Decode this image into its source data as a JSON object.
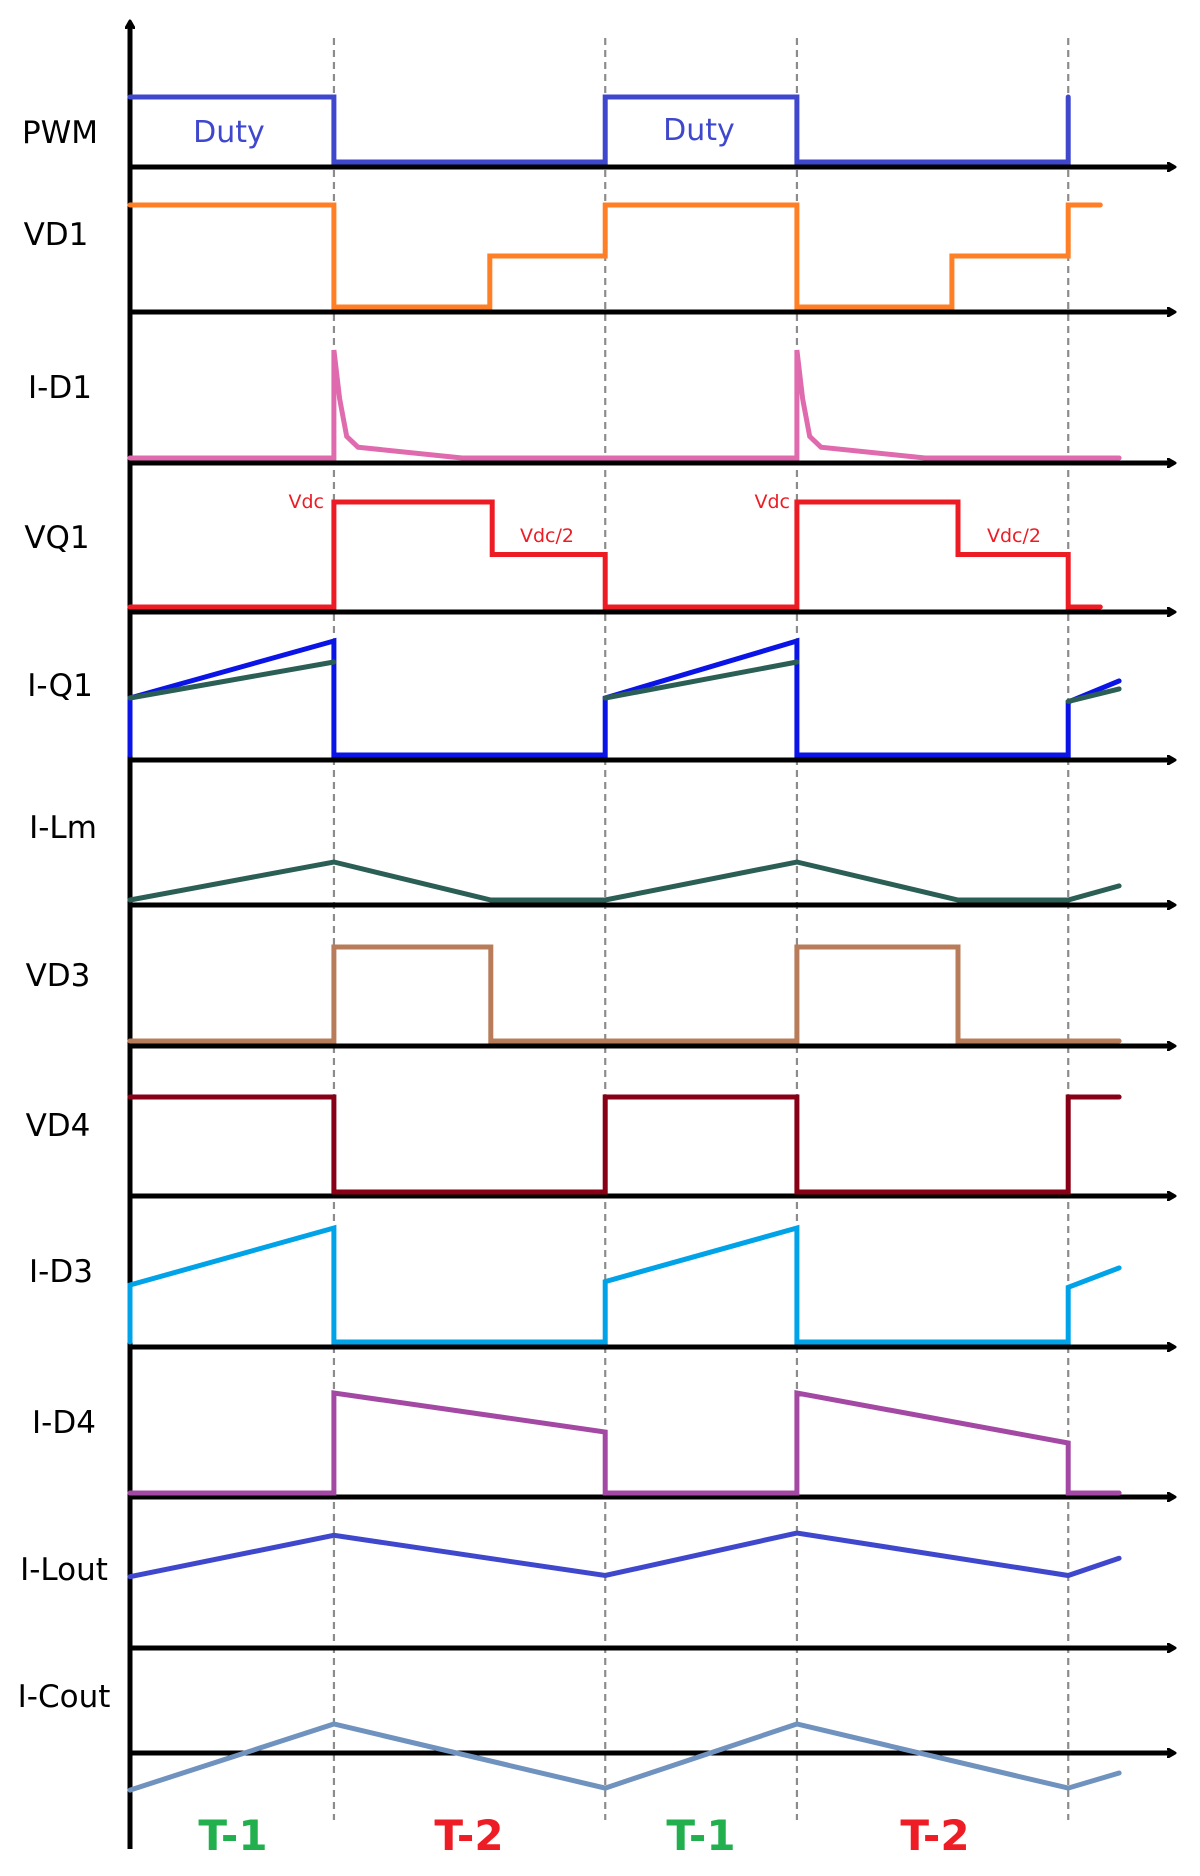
{
  "chart_data": {
    "type": "line",
    "title": "",
    "description": "Timing diagram of converter switching waveforms over two switching periods",
    "xlabel": "",
    "ylabel": "",
    "time_unit": "switching period T",
    "grid": "vertical dashed lines at phase boundaries",
    "phase_boundaries": [
      0,
      0.433,
      1.009,
      1.416,
      1.992
    ],
    "phases": [
      {
        "label": "T-1",
        "color": "#22b04f",
        "start": 0,
        "end": 0.433
      },
      {
        "label": "T-2",
        "color": "#ee1c24",
        "start": 0.433,
        "end": 1.009
      },
      {
        "label": "T-1",
        "color": "#22b04f",
        "start": 1.009,
        "end": 1.416
      },
      {
        "label": "T-2",
        "color": "#ee1c24",
        "start": 1.416,
        "end": 1.992
      }
    ],
    "series": [
      {
        "name": "PWM",
        "color": "#3f48cc",
        "points": [
          [
            0,
            1
          ],
          [
            0.433,
            1
          ],
          [
            0.433,
            0
          ],
          [
            1.009,
            0
          ],
          [
            1.009,
            1
          ],
          [
            1.416,
            1
          ],
          [
            1.416,
            0
          ],
          [
            1.992,
            0
          ],
          [
            1.992,
            1
          ]
        ],
        "annotations": [
          {
            "text": "Duty",
            "t": 0.2,
            "level": 0.5
          },
          {
            "text": "Duty",
            "t": 1.21,
            "level": 0.5
          }
        ]
      },
      {
        "name": "VD1",
        "color": "#ff7f27",
        "points": [
          [
            0,
            1
          ],
          [
            0.433,
            1
          ],
          [
            0.433,
            0
          ],
          [
            0.764,
            0
          ],
          [
            0.764,
            0.5
          ],
          [
            1.009,
            0.5
          ],
          [
            1.009,
            1
          ],
          [
            1.416,
            1
          ],
          [
            1.416,
            0
          ],
          [
            1.745,
            0
          ],
          [
            1.745,
            0.5
          ],
          [
            1.992,
            0.5
          ],
          [
            1.992,
            1
          ],
          [
            2.06,
            1
          ]
        ]
      },
      {
        "name": "I-D1",
        "color": "#e06aae",
        "points": [
          [
            0,
            0
          ],
          [
            0.433,
            0
          ],
          [
            0.433,
            1
          ],
          [
            0.445,
            0.55
          ],
          [
            0.46,
            0.2
          ],
          [
            0.484,
            0.1
          ],
          [
            0.705,
            0
          ],
          [
            1.416,
            0
          ],
          [
            1.416,
            1
          ],
          [
            1.428,
            0.55
          ],
          [
            1.443,
            0.2
          ],
          [
            1.467,
            0.1
          ],
          [
            1.688,
            0
          ],
          [
            2.1,
            0
          ]
        ]
      },
      {
        "name": "VQ1",
        "color": "#ed1c24",
        "points": [
          [
            0,
            0
          ],
          [
            0.433,
            0
          ],
          [
            0.433,
            1
          ],
          [
            0.769,
            1
          ],
          [
            0.769,
            0.5
          ],
          [
            1.009,
            0.5
          ],
          [
            1.009,
            0
          ],
          [
            1.416,
            0
          ],
          [
            1.416,
            1
          ],
          [
            1.758,
            1
          ],
          [
            1.758,
            0.5
          ],
          [
            1.992,
            0.5
          ],
          [
            1.992,
            0
          ],
          [
            2.06,
            0
          ]
        ],
        "annotations": [
          {
            "text": "Vdc",
            "t": 0.433,
            "level": 1
          },
          {
            "text": "Vdc/2",
            "t": 0.885,
            "level": 0.5
          },
          {
            "text": "Vdc",
            "t": 1.416,
            "level": 1
          },
          {
            "text": "Vdc/2",
            "t": 1.875,
            "level": 0.5
          }
        ]
      },
      {
        "name": "I-Q1",
        "color": "#0a14e6",
        "points": [
          [
            0,
            0
          ],
          [
            0,
            0.5
          ],
          [
            0.433,
            1
          ],
          [
            0.433,
            0
          ],
          [
            1.009,
            0
          ],
          [
            1.009,
            0.5
          ],
          [
            1.416,
            1
          ],
          [
            1.416,
            0
          ],
          [
            1.992,
            0
          ],
          [
            1.992,
            0.465
          ],
          [
            2.1,
            0.65
          ]
        ]
      },
      {
        "name": "I-Q1 (Lm component)",
        "color": "#2b5f55",
        "points": [
          [
            0,
            0.5
          ],
          [
            0.433,
            0.816
          ]
        ],
        "segments": [
          [
            [
              0,
              0.5
            ],
            [
              0.433,
              0.816
            ]
          ],
          [
            [
              1.009,
              0.5
            ],
            [
              1.416,
              0.816
            ]
          ],
          [
            [
              1.992,
              0.47
            ],
            [
              2.1,
              0.58
            ]
          ]
        ]
      },
      {
        "name": "I-Lm",
        "color": "#2b5f55",
        "points": [
          [
            0,
            0
          ],
          [
            0.433,
            1
          ],
          [
            0.766,
            0
          ],
          [
            1.009,
            0
          ],
          [
            1.416,
            1
          ],
          [
            1.758,
            0
          ],
          [
            1.992,
            0
          ],
          [
            2.1,
            0.37
          ]
        ]
      },
      {
        "name": "VD3",
        "color": "#b97c5a",
        "points": [
          [
            0,
            0
          ],
          [
            0.433,
            0
          ],
          [
            0.433,
            1
          ],
          [
            0.766,
            1
          ],
          [
            0.766,
            0
          ],
          [
            1.416,
            0
          ],
          [
            1.416,
            1
          ],
          [
            1.758,
            1
          ],
          [
            1.758,
            0
          ],
          [
            2.1,
            0
          ]
        ]
      },
      {
        "name": "VD4",
        "color": "#880015",
        "points": [
          [
            0,
            1
          ],
          [
            0.433,
            1
          ],
          [
            0.433,
            0
          ],
          [
            1.009,
            0
          ],
          [
            1.009,
            1
          ],
          [
            1.416,
            1
          ],
          [
            1.416,
            0
          ],
          [
            1.992,
            0
          ],
          [
            1.992,
            1
          ],
          [
            2.1,
            1
          ]
        ]
      },
      {
        "name": "I-D3",
        "color": "#00a2e8",
        "points": [
          [
            0,
            0
          ],
          [
            0,
            0.5
          ],
          [
            0.433,
            1
          ],
          [
            0.433,
            0
          ],
          [
            1.009,
            0
          ],
          [
            1.009,
            0.53
          ],
          [
            1.416,
            1
          ],
          [
            1.416,
            0
          ],
          [
            1.992,
            0
          ],
          [
            1.992,
            0.48
          ],
          [
            2.1,
            0.65
          ]
        ]
      },
      {
        "name": "I-D4",
        "color": "#a349a4",
        "points": [
          [
            0,
            0
          ],
          [
            0.433,
            0
          ],
          [
            0.433,
            1
          ],
          [
            1.009,
            0.61
          ],
          [
            1.009,
            0
          ],
          [
            1.416,
            0
          ],
          [
            1.416,
            1
          ],
          [
            1.992,
            0.5
          ],
          [
            1.992,
            0
          ],
          [
            2.1,
            0
          ]
        ]
      },
      {
        "name": "I-Lout",
        "color": "#3f48cc",
        "points": [
          [
            0,
            0.62
          ],
          [
            0.433,
            0.98
          ],
          [
            1.009,
            0.63
          ],
          [
            1.416,
            1
          ],
          [
            1.992,
            0.63
          ],
          [
            2.1,
            0.78
          ]
        ]
      },
      {
        "name": "I-Cout",
        "color": "#7092be",
        "points": [
          [
            0,
            -1.28
          ],
          [
            0.433,
            1
          ],
          [
            1.009,
            -1.21
          ],
          [
            1.416,
            1
          ],
          [
            1.992,
            -1.21
          ],
          [
            2.1,
            -0.69
          ]
        ]
      }
    ]
  },
  "rows": [
    {
      "label": "PWM"
    },
    {
      "label": "VD1"
    },
    {
      "label": "I-D1"
    },
    {
      "label": "VQ1"
    },
    {
      "label": "I-Q1"
    },
    {
      "label": "I-Lm"
    },
    {
      "label": "VD3"
    },
    {
      "label": "VD4"
    },
    {
      "label": "I-D3"
    },
    {
      "label": "I-D4"
    },
    {
      "label": "I-Lout"
    },
    {
      "label": "I-Cout"
    }
  ],
  "phase_labels": [
    "T-1",
    "T-2",
    "T-1",
    "T-2"
  ],
  "colors": {
    "axis": "#000000",
    "gridline": "#8c8c8c",
    "t1": "#22b04f",
    "t2": "#ee1c24"
  }
}
